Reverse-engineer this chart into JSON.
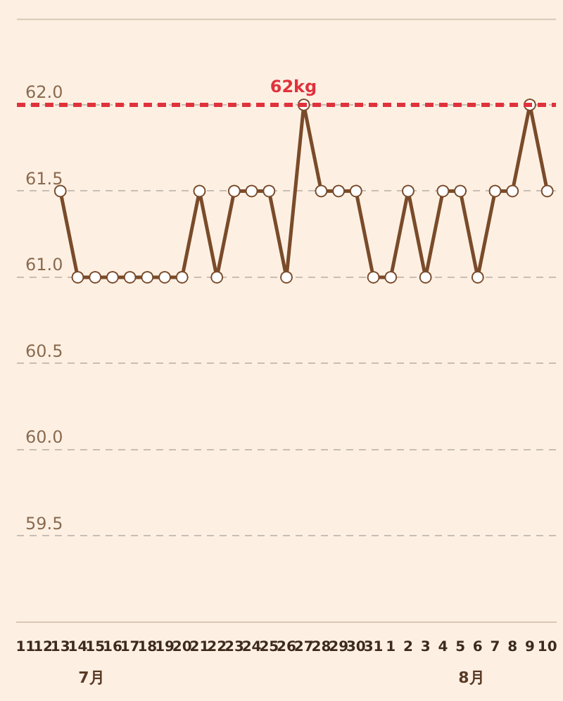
{
  "chart_data": {
    "type": "line",
    "categories": [
      "11",
      "12",
      "13",
      "14",
      "15",
      "16",
      "17",
      "18",
      "19",
      "20",
      "21",
      "22",
      "23",
      "24",
      "25",
      "26",
      "27",
      "28",
      "29",
      "30",
      "31",
      "1",
      "2",
      "3",
      "4",
      "5",
      "6",
      "7",
      "8",
      "9",
      "10"
    ],
    "series": [
      {
        "color": "#7a4b2a",
        "values": [
          null,
          null,
          61.5,
          61.0,
          61.0,
          61.0,
          61.0,
          61.0,
          61.0,
          61.0,
          61.5,
          61.0,
          61.5,
          61.5,
          61.5,
          61.0,
          62.0,
          61.5,
          61.5,
          61.5,
          61.0,
          61.0,
          61.5,
          61.0,
          61.5,
          61.5,
          61.0,
          61.5,
          61.5,
          62.0,
          61.5
        ]
      }
    ],
    "ylim": [
      59.0,
      62.5
    ],
    "yticks": [
      {
        "value": 59.0,
        "label": null
      },
      {
        "value": 59.5,
        "label": "59.5"
      },
      {
        "value": 60.0,
        "label": "60.0"
      },
      {
        "value": 60.5,
        "label": "60.5"
      },
      {
        "value": 61.0,
        "label": "61.0"
      },
      {
        "value": 61.5,
        "label": "61.5"
      },
      {
        "value": 62.0,
        "label": "62.0"
      }
    ],
    "ref_lines": [
      {
        "axis": "y",
        "value": 62.0,
        "label": "62kg",
        "color": "#e0323c",
        "line_style": "dashed"
      }
    ],
    "annotations": [
      "7月",
      "8月"
    ],
    "grid": "y",
    "legend": false,
    "marker": "circle",
    "line_style": "solid"
  }
}
